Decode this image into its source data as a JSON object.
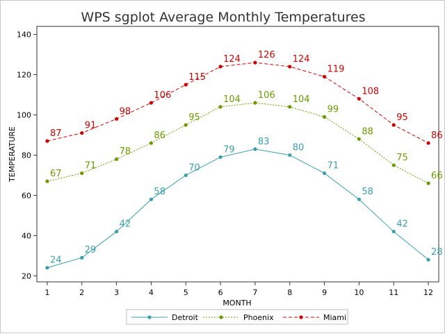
{
  "chart_data": {
    "type": "line",
    "title": "WPS sgplot Average Monthly Temperatures",
    "xlabel": "MONTH",
    "ylabel": "TEMPERATURE",
    "x": [
      1,
      2,
      3,
      4,
      5,
      6,
      7,
      8,
      9,
      10,
      11,
      12
    ],
    "x_ticks": [
      "1",
      "2",
      "3",
      "4",
      "5",
      "6",
      "7",
      "8",
      "9",
      "10",
      "11",
      "12"
    ],
    "y_ticks": [
      "20",
      "40",
      "60",
      "80",
      "100",
      "120",
      "140"
    ],
    "ylim": [
      17,
      144
    ],
    "xlim": [
      0.7,
      12.3
    ],
    "grid": false,
    "legend_position": "bottom",
    "series": [
      {
        "name": "Detroit",
        "values": [
          24,
          29,
          42,
          58,
          70,
          79,
          83,
          80,
          71,
          58,
          42,
          28
        ],
        "color": "#3aa0a8",
        "line_style": "solid",
        "marker": "dot"
      },
      {
        "name": "Phoenix",
        "values": [
          67,
          71,
          78,
          86,
          95,
          104,
          106,
          104,
          99,
          88,
          75,
          66
        ],
        "color": "#6a9a00",
        "line_style": "dotted",
        "marker": "dot"
      },
      {
        "name": "Miami",
        "values": [
          87,
          91,
          98,
          106,
          115,
          124,
          126,
          124,
          119,
          108,
          95,
          86
        ],
        "color": "#cc0000",
        "line_style": "dashed",
        "marker": "dot"
      }
    ]
  }
}
